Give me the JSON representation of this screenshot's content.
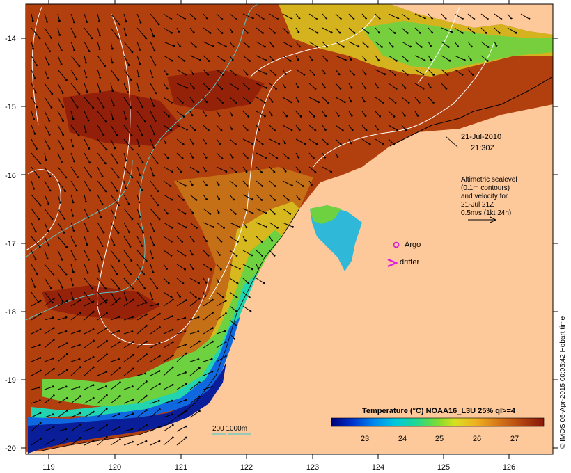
{
  "map": {
    "lon_ticks": [
      "119",
      "120",
      "121",
      "122",
      "123",
      "124",
      "125",
      "126"
    ],
    "lat_ticks": [
      "-14",
      "-15",
      "-16",
      "-17",
      "-18",
      "-19",
      "-20"
    ],
    "date_line1": "21-Jul-2010",
    "date_line2": "21:30Z",
    "altimetry_lines": [
      "Altimetric sealevel",
      "(0.1m contours)",
      "and velocity for",
      "21-Jul 21Z",
      "0.5m/s (1kt 24h)"
    ],
    "argo_label": "Argo",
    "drifter_label": "drifter",
    "isobath_label": "200 1000m",
    "colorbar_title": "Temperature (°C) NOAA16_L3U 25% ql>=4",
    "colorbar_ticks": [
      "23",
      "24",
      "25",
      "26",
      "27"
    ],
    "credit": "© IMOS 05-Apr-2015 00:05:42 Hobart time",
    "colors": {
      "land": "#fdc89a",
      "sea_warm": "#a8320e",
      "sea_mid": "#d8a01a",
      "sea_cool": "#2bd8b4",
      "sea_cold": "#0a1e9a",
      "arrow": "#000000",
      "contour": "#ffffff",
      "isobath": "#5bc8c8",
      "argo": "#d020d0",
      "drifter": "#e020e0"
    }
  }
}
